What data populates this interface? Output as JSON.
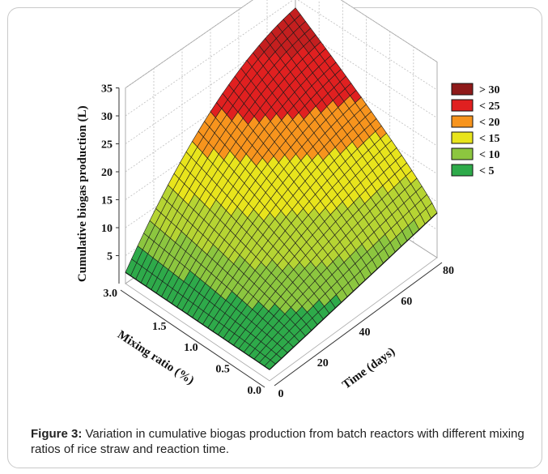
{
  "chart_data": {
    "type": "surface",
    "zlabel": "Cumulative biogas production (L)",
    "xlabel": "Time (days)",
    "ylabel": "Mixing ratio (%)",
    "z_ticks": [
      "5",
      "10",
      "15",
      "20",
      "25",
      "30",
      "35"
    ],
    "x_ticks": [
      "0",
      "20",
      "40",
      "60",
      "80"
    ],
    "y_ticks": [
      "0.0",
      "0.5",
      "1.0",
      "1.5",
      "3.0"
    ],
    "zlim": [
      0,
      35
    ],
    "xlim": [
      0,
      80
    ],
    "ylim": [
      0,
      3.0
    ],
    "legend_position": "top-right",
    "legend": [
      {
        "label": "> 30",
        "color": "#8e1a1a"
      },
      {
        "label": "< 25",
        "color": "#e02020"
      },
      {
        "label": "< 20",
        "color": "#f7941d"
      },
      {
        "label": "< 15",
        "color": "#e8e41c"
      },
      {
        "label": "< 10",
        "color": "#8cc63f"
      },
      {
        "label": "< 5",
        "color": "#2eaa4a"
      }
    ],
    "corner_values": [
      {
        "time": 0,
        "mixing_ratio": 0.0,
        "biogas": 0
      },
      {
        "time": 80,
        "mixing_ratio": 0.0,
        "biogas": 8
      },
      {
        "time": 0,
        "mixing_ratio": 3.0,
        "biogas": 2
      },
      {
        "time": 80,
        "mixing_ratio": 3.0,
        "biogas": 35
      }
    ]
  },
  "caption": {
    "label": "Figure 3:",
    "text": " Variation in cumulative biogas production from batch reactors with different mixing ratios of rice straw and reaction time."
  }
}
